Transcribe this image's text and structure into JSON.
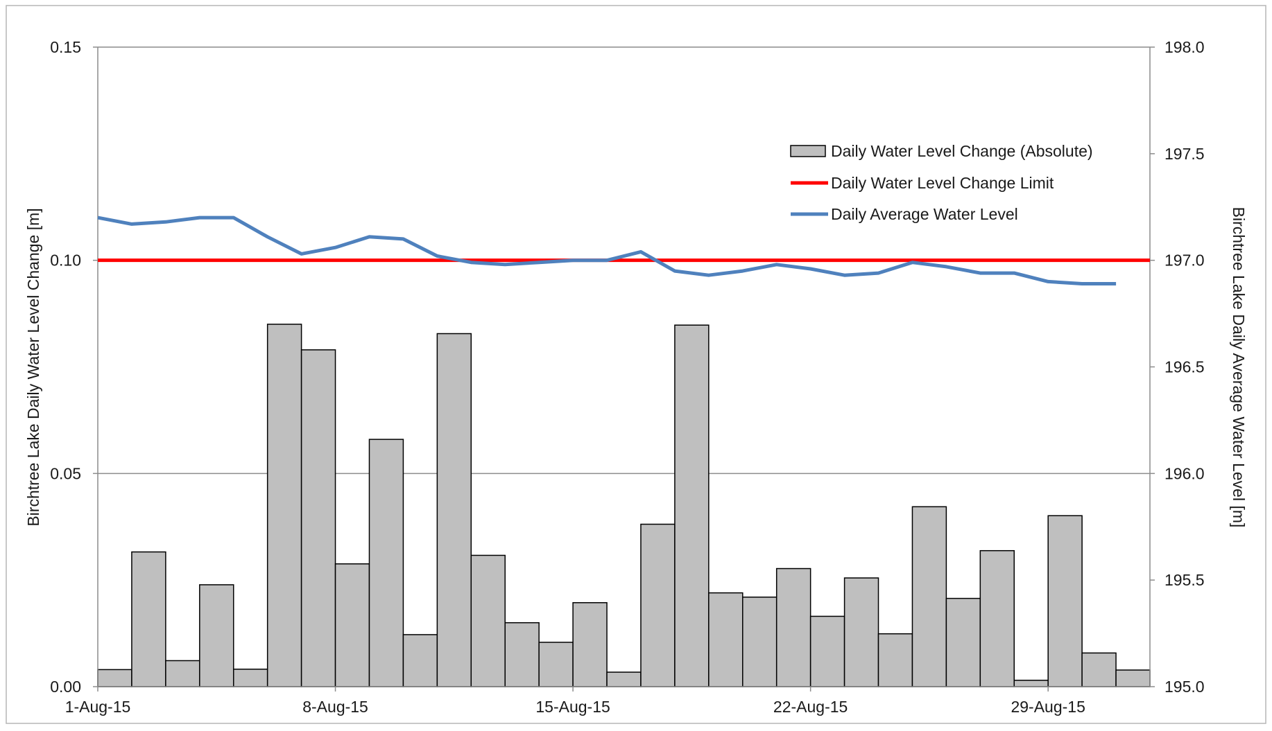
{
  "chart_data": {
    "type": "bar",
    "title": "",
    "x_tick_labels": [
      "1-Aug-15",
      "8-Aug-15",
      "15-Aug-15",
      "22-Aug-15",
      "29-Aug-15"
    ],
    "y_left": {
      "label": "Birchtree Lake Daily Water Level Change [m]",
      "range": [
        0.0,
        0.15
      ],
      "ticks": [
        "0.00",
        "0.05",
        "0.10",
        "0.15"
      ]
    },
    "y_right": {
      "label": "Birchtree Lake Daily Average Water Level [m]",
      "range": [
        195.0,
        198.0
      ],
      "ticks": [
        "195.0",
        "195.5",
        "196.0",
        "196.5",
        "197.0",
        "197.5",
        "198.0"
      ]
    },
    "grid": "horizontal",
    "legend_position": "top-right",
    "series": [
      {
        "name": "Daily Water Level Change (Absolute)",
        "type": "bar",
        "color": "#bfbfbf",
        "values": [
          0.004,
          0.0316,
          0.0061,
          0.0239,
          0.0041,
          0.085,
          0.079,
          0.0288,
          0.058,
          0.0122,
          0.0828,
          0.0308,
          0.015,
          0.0104,
          0.0197,
          0.0034,
          0.0381,
          0.0848,
          0.022,
          0.021,
          0.0277,
          0.0165,
          0.0255,
          0.0124,
          0.0422,
          0.0207,
          0.0319,
          0.0015,
          0.0401,
          0.0079,
          0.0039
        ]
      },
      {
        "name": "Daily Water Level Change Limit",
        "type": "line",
        "color": "#ff0000",
        "value": 0.1
      },
      {
        "name": "Daily Average Water Level",
        "type": "line",
        "color": "#4f81bd",
        "values": [
          197.2,
          197.17,
          197.18,
          197.2,
          197.2,
          197.11,
          197.03,
          197.06,
          197.11,
          197.1,
          197.02,
          196.99,
          196.98,
          196.99,
          197.0,
          197.0,
          197.04,
          196.95,
          196.93,
          196.95,
          196.98,
          196.96,
          196.93,
          196.94,
          196.99,
          196.97,
          196.94,
          196.94,
          196.9,
          196.89,
          196.89
        ]
      }
    ]
  }
}
